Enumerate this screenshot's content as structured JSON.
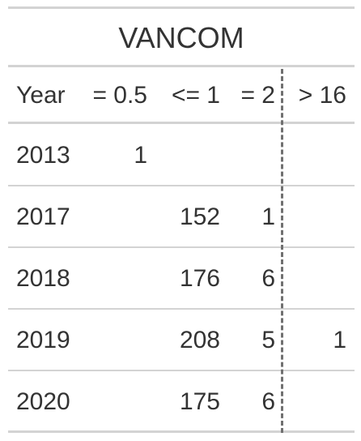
{
  "table": {
    "title": "VANCOM",
    "columns": [
      "Year",
      "= 0.5",
      "<= 1",
      "= 2",
      "> 16"
    ],
    "rows": [
      {
        "year": "2013",
        "eq_0_5": "1",
        "le_1": "",
        "eq_2": "",
        "gt_16": ""
      },
      {
        "year": "2017",
        "eq_0_5": "",
        "le_1": "152",
        "eq_2": "1",
        "gt_16": ""
      },
      {
        "year": "2018",
        "eq_0_5": "",
        "le_1": "176",
        "eq_2": "6",
        "gt_16": ""
      },
      {
        "year": "2019",
        "eq_0_5": "",
        "le_1": "208",
        "eq_2": "5",
        "gt_16": "1"
      },
      {
        "year": "2020",
        "eq_0_5": "",
        "le_1": "175",
        "eq_2": "6",
        "gt_16": ""
      }
    ]
  }
}
